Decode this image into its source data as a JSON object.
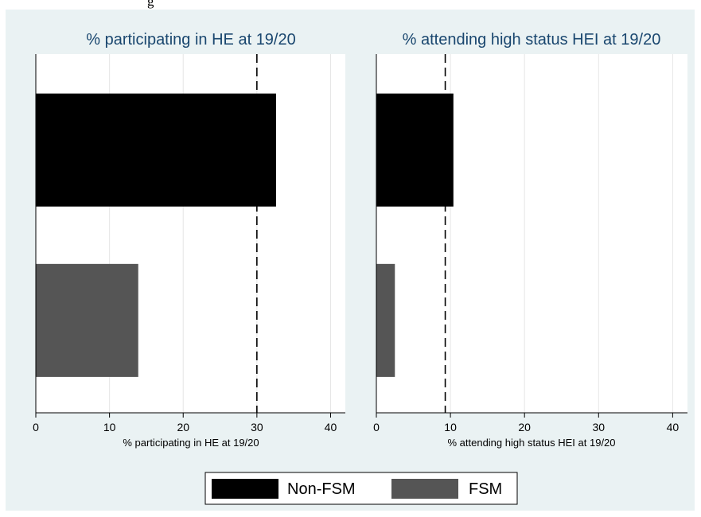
{
  "figure": {
    "cropped_top_text": "g",
    "background_color": "#eaf2f3",
    "plot_background_color": "#ffffff",
    "title_color": "#1a476f"
  },
  "chart_data": [
    {
      "type": "bar",
      "orientation": "horizontal",
      "title": "% participating in HE at 19/20",
      "xlabel": "% participating in HE at 19/20",
      "ylabel": "",
      "categories": [
        "Non-FSM",
        "FSM"
      ],
      "series": [
        {
          "name": "Non-FSM",
          "values": [
            32.6,
            null
          ],
          "color": "#000000"
        },
        {
          "name": "FSM",
          "values": [
            null,
            13.9
          ],
          "color": "#555555"
        }
      ],
      "xlim": [
        0,
        42
      ],
      "xticks": [
        0,
        10,
        20,
        30,
        40
      ],
      "grid": true,
      "reference_line": {
        "x": 30,
        "style": "dashed"
      }
    },
    {
      "type": "bar",
      "orientation": "horizontal",
      "title": "% attending high status HEI at 19/20",
      "xlabel": "% attending high status HEI at 19/20",
      "ylabel": "",
      "categories": [
        "Non-FSM",
        "FSM"
      ],
      "series": [
        {
          "name": "Non-FSM",
          "values": [
            10.4,
            null
          ],
          "color": "#000000"
        },
        {
          "name": "FSM",
          "values": [
            null,
            2.5
          ],
          "color": "#555555"
        }
      ],
      "xlim": [
        0,
        42
      ],
      "xticks": [
        0,
        10,
        20,
        30,
        40
      ],
      "grid": true,
      "reference_line": {
        "x": 9.3,
        "style": "dashed"
      }
    }
  ],
  "legend": {
    "placement": "bottom-center",
    "items": [
      {
        "label": "Non-FSM",
        "color": "#000000"
      },
      {
        "label": "FSM",
        "color": "#555555"
      }
    ]
  }
}
